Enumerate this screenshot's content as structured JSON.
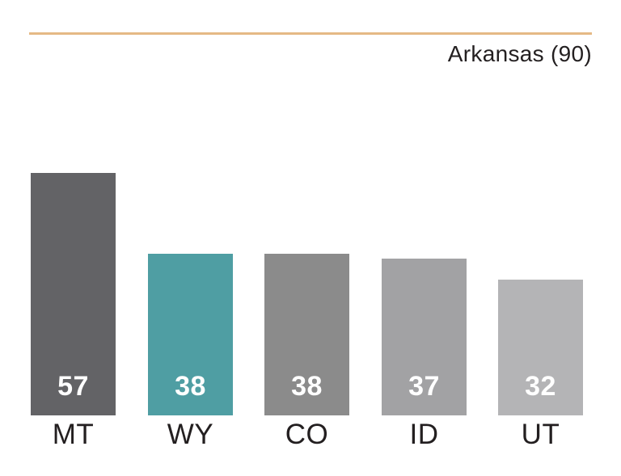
{
  "header": {
    "title": "Arkansas (90)",
    "rule_color": "#E5B985"
  },
  "chart_data": {
    "type": "bar",
    "title": "Arkansas (90)",
    "categories": [
      "MT",
      "WY",
      "CO",
      "ID",
      "UT"
    ],
    "values": [
      57,
      38,
      38,
      37,
      32
    ],
    "reference": {
      "label": "Arkansas",
      "value": 90
    },
    "ylim": [
      0,
      90
    ],
    "grid": false,
    "legend_position": "none",
    "highlight_category": "WY",
    "bar_colors": [
      "#636366",
      "#4F9EA3",
      "#8B8B8B",
      "#A2A2A4",
      "#B4B4B6"
    ],
    "value_label_color": "#FFFFFF",
    "category_label_color": "#231F20",
    "title_color": "#231F20"
  }
}
